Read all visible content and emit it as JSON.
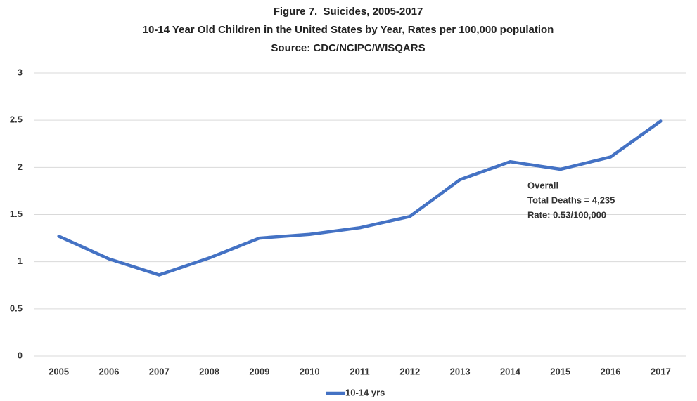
{
  "chart_data": {
    "type": "line",
    "title": "Figure 7.  Suicides, 2005-2017",
    "subtitle": "10-14 Year Old Children in the United States by Year, Rates per 100,000 population",
    "source": "Source: CDC/NCIPC/WISQARS",
    "categories": [
      "2005",
      "2006",
      "2007",
      "2008",
      "2009",
      "2010",
      "2011",
      "2012",
      "2013",
      "2014",
      "2015",
      "2016",
      "2017"
    ],
    "series": [
      {
        "name": "10-14 yrs",
        "color": "#4472c4",
        "values": [
          1.27,
          1.03,
          0.86,
          1.04,
          1.25,
          1.29,
          1.36,
          1.48,
          1.87,
          2.06,
          1.98,
          2.11,
          2.49
        ]
      }
    ],
    "ylim": [
      0,
      3
    ],
    "yticks": [
      0,
      0.5,
      1,
      1.5,
      2,
      2.5,
      3
    ],
    "grid": true,
    "legend": "bottom",
    "annotation": [
      "Overall",
      "Total Deaths = 4,235",
      "Rate: 0.53/100,000"
    ]
  }
}
